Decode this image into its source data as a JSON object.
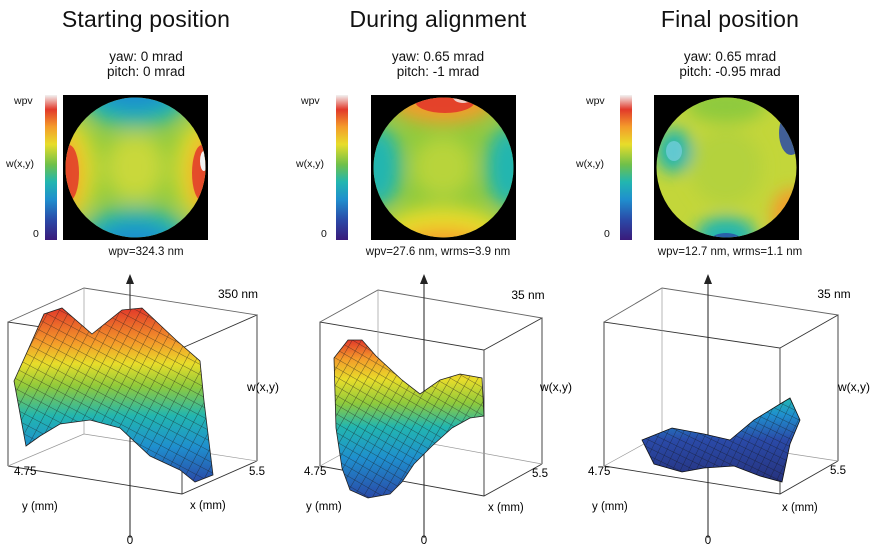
{
  "panels": [
    {
      "title": "Starting position",
      "yaw": "yaw: 0 mrad",
      "pitch": "pitch: 0 mrad",
      "colorbar": {
        "top": "wpv",
        "mid": "w(x,y)",
        "bottom": "0"
      },
      "wavefront_caption": "wpv=324.3 nm",
      "z_max_label": "350 nm",
      "z_axis_label": "w(x,y)",
      "y_max_label": "4.75",
      "x_max_label": "5.5",
      "y_axis_label": "y (mm)",
      "x_axis_label": "x (mm)",
      "origin_label": "0"
    },
    {
      "title": "During alignment",
      "yaw": "yaw: 0.65 mrad",
      "pitch": "pitch: -1 mrad",
      "colorbar": {
        "top": "wpv",
        "mid": "w(x,y)",
        "bottom": "0"
      },
      "wavefront_caption": "wpv=27.6 nm, wrms=3.9 nm",
      "z_max_label": "35 nm",
      "z_axis_label": "w(x,y)",
      "y_max_label": "4.75",
      "x_max_label": "5.5",
      "y_axis_label": "y (mm)",
      "x_axis_label": "x (mm)",
      "origin_label": "0"
    },
    {
      "title": "Final position",
      "yaw": "yaw: 0.65 mrad",
      "pitch": "pitch: -0.95 mrad",
      "colorbar": {
        "top": "wpv",
        "mid": "w(x,y)",
        "bottom": "0"
      },
      "wavefront_caption": "wpv=12.7 nm, wrms=1.1 nm",
      "z_max_label": "35 nm",
      "z_axis_label": "w(x,y)",
      "y_max_label": "4.75",
      "x_max_label": "5.5",
      "y_axis_label": "y (mm)",
      "x_axis_label": "x (mm)",
      "origin_label": "0"
    }
  ],
  "colors": {
    "black": "#000000",
    "violet": "#3a1a7a",
    "blue": "#2a4aa8",
    "cyan": "#22b6b0",
    "green": "#6fc04a",
    "yellow": "#e8dd2a",
    "orange": "#f49c2a",
    "red": "#e2392a",
    "white": "#f2f2f2"
  }
}
